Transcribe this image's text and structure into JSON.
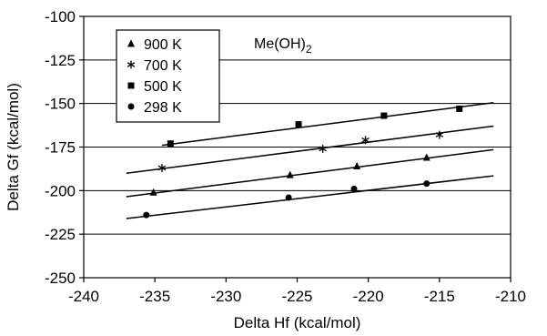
{
  "chart_data": {
    "type": "scatter",
    "title": "",
    "xlabel": "Delta Hf (kcal/mol)",
    "ylabel": "Delta Gf (kcal/mol)",
    "xlim": [
      -240,
      -210
    ],
    "ylim": [
      -250,
      -100
    ],
    "xticks": [
      -240,
      -235,
      -230,
      -225,
      -220,
      -215,
      -210
    ],
    "yticks": [
      -100,
      -125,
      -150,
      -175,
      -200,
      -225,
      -250
    ],
    "grid": "horizontal",
    "legend_placement": "top-left",
    "annotation": {
      "base": "Me(OH)",
      "sub": "2"
    },
    "series": [
      {
        "name": "900 K",
        "marker": "triangle",
        "points": [
          [
            -235.1,
            -201
          ],
          [
            -225.5,
            -191
          ],
          [
            -220.8,
            -186
          ],
          [
            -215.9,
            -181
          ]
        ],
        "fit": [
          [
            -237,
            -203.5
          ],
          [
            -211.2,
            -176.5
          ]
        ]
      },
      {
        "name": "700 K",
        "marker": "asterisk",
        "points": [
          [
            -234.5,
            -187
          ],
          [
            -223.2,
            -176
          ],
          [
            -220.2,
            -171
          ],
          [
            -215.0,
            -168
          ]
        ],
        "fit": [
          [
            -237,
            -190
          ],
          [
            -211.2,
            -163
          ]
        ]
      },
      {
        "name": "500 K",
        "marker": "square",
        "points": [
          [
            -233.9,
            -173
          ],
          [
            -224.9,
            -162
          ],
          [
            -218.9,
            -157
          ],
          [
            -213.6,
            -153
          ]
        ],
        "fit": [
          [
            -234.5,
            -174
          ],
          [
            -211.2,
            -149.5
          ]
        ]
      },
      {
        "name": "298 K",
        "marker": "circle",
        "points": [
          [
            -235.6,
            -214
          ],
          [
            -225.6,
            -204
          ],
          [
            -221.0,
            -199
          ],
          [
            -215.9,
            -196
          ]
        ],
        "fit": [
          [
            -237,
            -216
          ],
          [
            -211.2,
            -191.5
          ]
        ]
      }
    ]
  }
}
